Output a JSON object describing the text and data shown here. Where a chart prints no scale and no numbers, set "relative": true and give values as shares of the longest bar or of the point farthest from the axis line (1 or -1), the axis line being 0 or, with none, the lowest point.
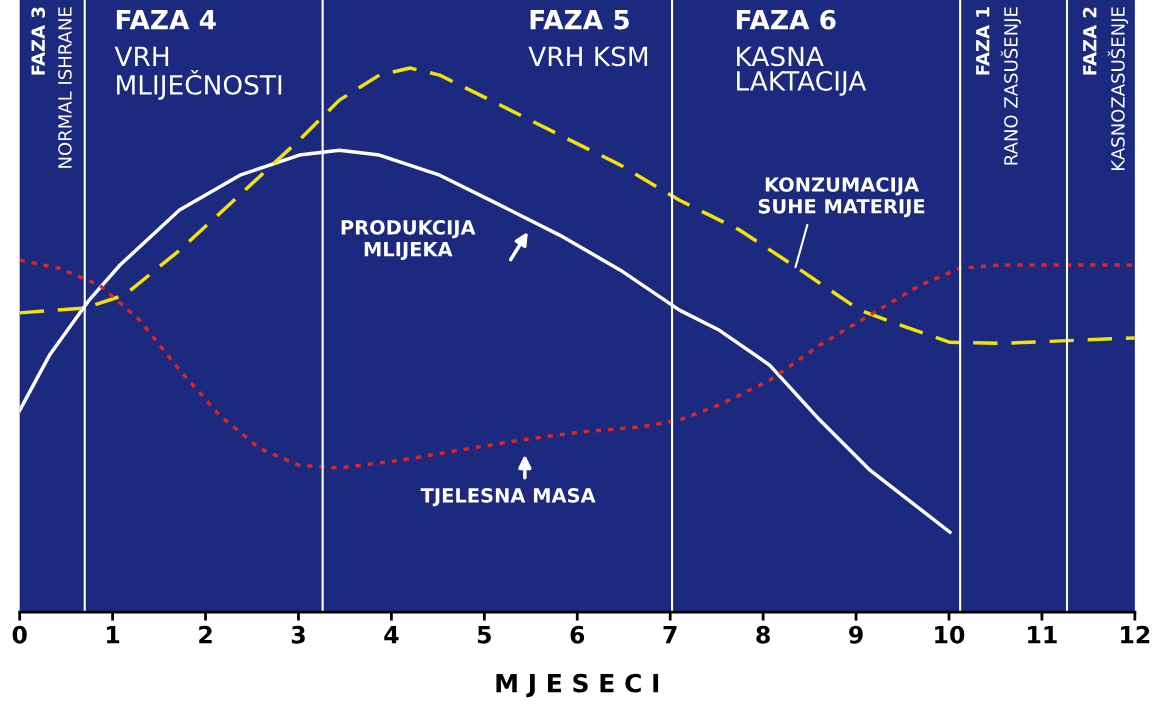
{
  "chart_data": {
    "type": "line",
    "relative": true,
    "xlabel": "M J E S E C I",
    "xlim": [
      0,
      12
    ],
    "xticks": [
      0,
      1,
      2,
      3,
      4,
      5,
      6,
      7,
      8,
      9,
      10,
      11,
      12
    ],
    "grid": false,
    "legend": false,
    "tick_labels": "x",
    "series": [
      {
        "color": "#ffffff",
        "line_style": "solid",
        "x": [
          0,
          0.32,
          0.75,
          1.08,
          1.72,
          2.37,
          3.01,
          3.44,
          3.87,
          4.52,
          5.17,
          5.81,
          6.46,
          7.1,
          7.53,
          8.07,
          8.61,
          9.15,
          10.01
        ],
        "values": [
          0.371,
          0.472,
          0.574,
          0.638,
          0.739,
          0.803,
          0.84,
          0.849,
          0.84,
          0.803,
          0.748,
          0.693,
          0.629,
          0.555,
          0.518,
          0.454,
          0.353,
          0.261,
          0.147
        ]
      },
      {
        "color": "#f2e20a",
        "line_style": "dashed",
        "x": [
          0,
          0.7,
          1.13,
          1.72,
          2.37,
          3.01,
          3.44,
          3.87,
          4.2,
          4.52,
          5.17,
          5.81,
          6.46,
          7.1,
          7.75,
          8.4,
          9.04,
          9.47,
          10.01,
          10.55,
          12
        ],
        "values": [
          0.55,
          0.559,
          0.583,
          0.665,
          0.767,
          0.868,
          0.941,
          0.987,
          1.0,
          0.987,
          0.932,
          0.877,
          0.822,
          0.757,
          0.702,
          0.629,
          0.555,
          0.528,
          0.496,
          0.494,
          0.504
        ]
      },
      {
        "color": "#d9262a",
        "line_style": "dotted",
        "x": [
          0,
          0.43,
          0.86,
          1.29,
          1.72,
          2.15,
          2.58,
          3.01,
          3.44,
          4.09,
          4.74,
          5.38,
          6.03,
          6.67,
          7.1,
          7.53,
          8.07,
          8.61,
          9.15,
          9.69,
          10.12,
          10.55,
          12
        ],
        "values": [
          0.647,
          0.632,
          0.601,
          0.537,
          0.445,
          0.362,
          0.301,
          0.27,
          0.265,
          0.279,
          0.298,
          0.316,
          0.331,
          0.34,
          0.353,
          0.381,
          0.426,
          0.491,
          0.546,
          0.601,
          0.632,
          0.638,
          0.638
        ]
      }
    ],
    "ref_lines": [
      {
        "axis": "x",
        "value": 0.7,
        "color": "#ffffff"
      },
      {
        "axis": "x",
        "value": 3.26,
        "color": "#ffffff"
      },
      {
        "axis": "x",
        "value": 7.02,
        "color": "#ffffff"
      },
      {
        "axis": "x",
        "value": 10.12,
        "color": "#ffffff"
      },
      {
        "axis": "x",
        "value": 11.27,
        "color": "#ffffff"
      }
    ],
    "annotations": [
      "FAZA 3\nNORMAL ISHRANE",
      "FAZA 4\nVRH\nMLIJEČNOSTI",
      "FAZA 5\nVRH KSM",
      "FAZA 6\nKASNA\nLAKTACIJA",
      "FAZA 1\nRANO ZASUŠENJE",
      "FAZA 2\nKASNOZASUŠENJE",
      "PRODUKCIJA\nMLIJEKA",
      "KONZUMACIJA\nSUHE MATERIJE",
      "TJELESNA MASA"
    ]
  }
}
